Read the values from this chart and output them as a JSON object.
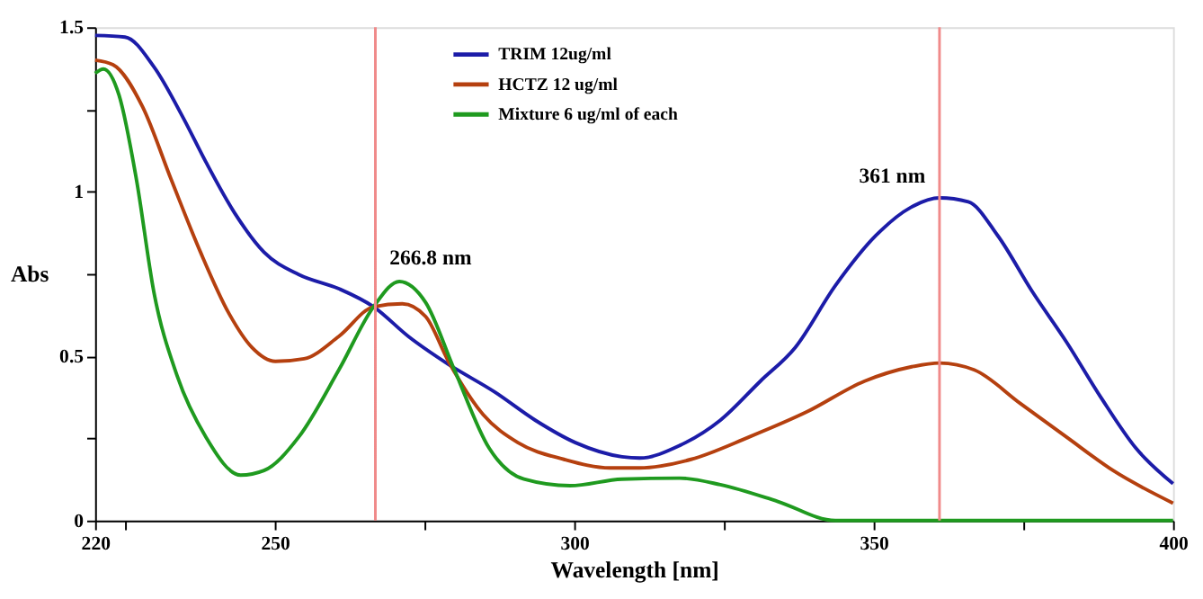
{
  "chart_data": {
    "type": "line",
    "xlabel": "Wavelength [nm]",
    "ylabel": "Abs",
    "xlim": [
      220,
      400
    ],
    "ylim": [
      0,
      1.5
    ],
    "xticks": [
      220,
      {
        "value": 225,
        "label": null
      },
      250,
      {
        "value": 275,
        "label": null
      },
      300,
      {
        "value": 325,
        "label": null
      },
      350,
      {
        "value": 375,
        "label": null
      },
      400
    ],
    "yticks": [
      0,
      {
        "value": 0.25,
        "label": null
      },
      0.5,
      {
        "value": 0.75,
        "label": null
      },
      1,
      {
        "value": 1.25,
        "label": null
      },
      1.5
    ],
    "grid": false,
    "legend": "top",
    "line_style": "solid",
    "marker": "none",
    "series": [
      {
        "name": "TRIM 12ug/ml",
        "color": "#1c1ca8",
        "x": [
          220,
          225,
          229.8,
          234.7,
          238.5,
          243.3,
          248.2,
          254,
          260.7,
          266.5,
          272.3,
          279,
          286.8,
          293.5,
          300.2,
          308,
          310.9,
          317.6,
          324.4,
          331.1,
          336.9,
          343.6,
          350.4,
          356.2,
          361,
          365.8,
          370.7,
          376.5,
          382.2,
          388,
          393.8,
          400
        ],
        "values": [
          1.475,
          1.47,
          1.38,
          1.225,
          1.09,
          0.935,
          0.816,
          0.748,
          0.705,
          0.65,
          0.56,
          0.475,
          0.39,
          0.305,
          0.237,
          0.194,
          0.19,
          0.228,
          0.305,
          0.424,
          0.526,
          0.714,
          0.867,
          0.952,
          0.981,
          0.969,
          0.867,
          0.696,
          0.543,
          0.373,
          0.22,
          0.112
        ]
      },
      {
        "name": "HCTZ 12 ug/ml",
        "color": "#b5400f",
        "x": [
          220,
          223,
          227.9,
          232.7,
          237.6,
          242.4,
          246.2,
          250.1,
          254.9,
          260.7,
          266.5,
          271.3,
          275.2,
          279,
          284.8,
          290.6,
          298.3,
          306,
          310.9,
          319.5,
          329.2,
          338.8,
          348.5,
          356.2,
          361,
          366.8,
          374.5,
          382.2,
          390,
          400
        ],
        "values": [
          1.4,
          1.386,
          1.259,
          1.037,
          0.816,
          0.628,
          0.526,
          0.484,
          0.492,
          0.56,
          0.65,
          0.659,
          0.62,
          0.484,
          0.322,
          0.237,
          0.186,
          0.16,
          0.16,
          0.186,
          0.254,
          0.33,
          0.424,
          0.467,
          0.479,
          0.458,
          0.356,
          0.254,
          0.152,
          0.053
        ]
      },
      {
        "name": "Mixture 6 ug/ml of each",
        "color": "#1f9a1f",
        "x": [
          220,
          221.4,
          224,
          226.9,
          229.8,
          233.7,
          238.5,
          244.3,
          248.2,
          254,
          260.7,
          266.5,
          270.8,
          275.2,
          280,
          285.8,
          291.6,
          299.3,
          308,
          317.6,
          324.4,
          334,
          343.6,
          400
        ],
        "values": [
          1.36,
          1.373,
          1.293,
          1.037,
          0.696,
          0.44,
          0.254,
          0.138,
          0.152,
          0.254,
          0.458,
          0.65,
          0.727,
          0.663,
          0.458,
          0.22,
          0.126,
          0.106,
          0.126,
          0.129,
          0.109,
          0.058,
          0,
          0
        ]
      }
    ],
    "ref_lines": [
      {
        "axis": "x",
        "value": 266.8,
        "color": "#f08a8a"
      },
      {
        "axis": "x",
        "value": 361,
        "color": "#f08a8a"
      }
    ],
    "annotations": [
      {
        "text": "266.8 nm",
        "x": 266.8,
        "y": 0.8
      },
      {
        "text": "361 nm",
        "x": 361,
        "y": 1.05
      }
    ]
  }
}
